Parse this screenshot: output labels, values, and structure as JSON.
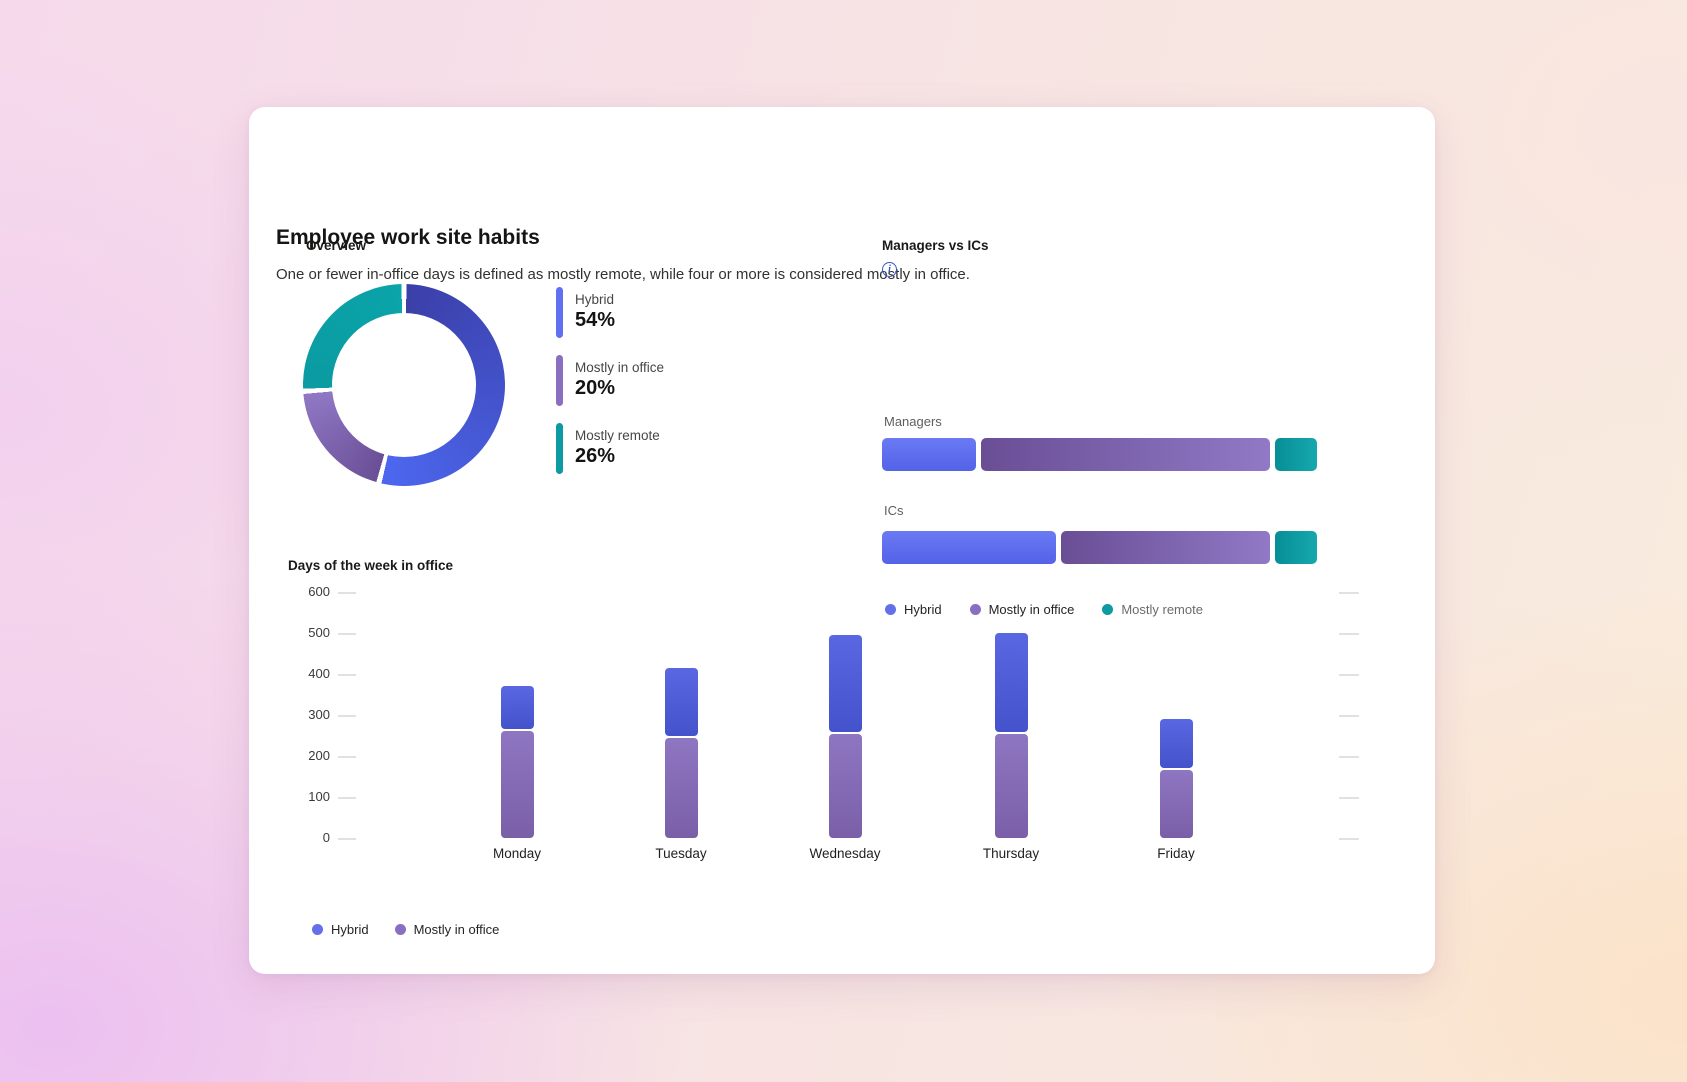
{
  "card": {
    "title": "Employee work site habits",
    "subtitle": "One or fewer in-office days is defined as mostly remote, while four or more is considered mostly in office."
  },
  "palette": {
    "hybrid": "#5f6eee",
    "mostly_in_office": "#8a6fc0",
    "mostly_remote": "#0d9aa2",
    "info_accent": "#3457c5",
    "card_background": "#ffffff"
  },
  "info_icon_label": "i",
  "chart_data": [
    {
      "id": "overview_donut",
      "type": "pie",
      "subtype": "donut",
      "title": "Overview",
      "labels": [
        "Hybrid",
        "Mostly in office",
        "Mostly remote"
      ],
      "values": [
        54,
        20,
        26
      ],
      "value_labels": [
        "54%",
        "20%",
        "26%"
      ],
      "colors": [
        "#6170f0",
        "#8a6fc0",
        "#0d9aa2"
      ],
      "legend_position": "right"
    },
    {
      "id": "managers_vs_ics",
      "type": "bar",
      "subtype": "horizontal-stacked",
      "title": "Managers vs ICs",
      "categories": [
        "Managers",
        "ICs"
      ],
      "unit": "percent-of-row",
      "series": [
        {
          "name": "Hybrid",
          "values": [
            22,
            41
          ],
          "color": "#5f6eee"
        },
        {
          "name": "Mostly in office",
          "values": [
            68,
            49
          ],
          "color": "#7b5fa6"
        },
        {
          "name": "Mostly remote",
          "values": [
            10,
            10
          ],
          "color": "#0f9aa1"
        }
      ],
      "legend": [
        {
          "label": "Hybrid",
          "color": "#6470ea"
        },
        {
          "label": "Mostly in office",
          "color": "#8a6fc0"
        },
        {
          "label": "Mostly remote",
          "color": "#0d9aa2"
        }
      ],
      "legend_position": "bottom"
    },
    {
      "id": "days_of_week_in_office",
      "type": "bar",
      "subtype": "vertical-stacked",
      "title": "Days of the week in office",
      "categories": [
        "Monday",
        "Tuesday",
        "Wednesday",
        "Thursday",
        "Friday"
      ],
      "series": [
        {
          "name": "Hybrid",
          "values": [
            105,
            165,
            235,
            240,
            120
          ],
          "color": "#4f5cd6"
        },
        {
          "name": "Mostly in office",
          "values": [
            260,
            245,
            255,
            255,
            165
          ],
          "color": "#8469ae"
        }
      ],
      "stack_order_bottom_to_top": [
        "Mostly in office",
        "Hybrid"
      ],
      "ylim": [
        0,
        600
      ],
      "y_ticks": [
        600,
        500,
        400,
        300,
        200,
        100,
        0
      ],
      "grid": false,
      "legend": [
        {
          "label": "Hybrid",
          "color": "#6470ea"
        },
        {
          "label": "Mostly in office",
          "color": "#8a6fc0"
        }
      ],
      "legend_position": "bottom-left"
    }
  ]
}
